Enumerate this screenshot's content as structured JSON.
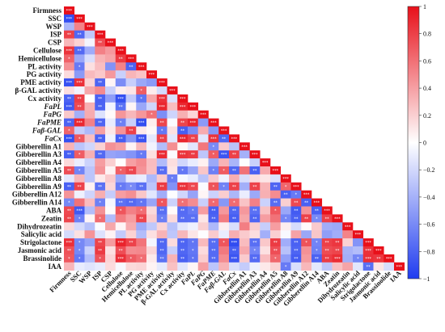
{
  "chart_data": {
    "type": "heatmap",
    "title": "",
    "layout": "lower-triangular correlation matrix",
    "variables": [
      {
        "name": "Firmness",
        "italic": false
      },
      {
        "name": "SSC",
        "italic": false
      },
      {
        "name": "WSP",
        "italic": false
      },
      {
        "name": "ISP",
        "italic": false
      },
      {
        "name": "CSP",
        "italic": false
      },
      {
        "name": "Cellulose",
        "italic": false
      },
      {
        "name": "Hemicellulose",
        "italic": false
      },
      {
        "name": "PL activity",
        "italic": false
      },
      {
        "name": "PG activity",
        "italic": false
      },
      {
        "name": "PME activity",
        "italic": false
      },
      {
        "name": "β-GAL activity",
        "italic": false
      },
      {
        "name": "Cx activity",
        "italic": false
      },
      {
        "name": "FaPL",
        "italic": true
      },
      {
        "name": "FaPG",
        "italic": true
      },
      {
        "name": "FaPME",
        "italic": true
      },
      {
        "name": "Faβ-GAL",
        "italic": true
      },
      {
        "name": "FaCx",
        "italic": true
      },
      {
        "name": "Gibberellin A1",
        "italic": false
      },
      {
        "name": "Gibberellin A3",
        "italic": false
      },
      {
        "name": "Gibberellin A4",
        "italic": false
      },
      {
        "name": "Gibberellin A5",
        "italic": false
      },
      {
        "name": "Gibberellin A8",
        "italic": false
      },
      {
        "name": "Gibberellin A9",
        "italic": false
      },
      {
        "name": "Gibberellin A12",
        "italic": false
      },
      {
        "name": "Gibberellin A14",
        "italic": false
      },
      {
        "name": "ABA",
        "italic": false
      },
      {
        "name": "Zeatin",
        "italic": false
      },
      {
        "name": "Dihydrozeatin",
        "italic": false
      },
      {
        "name": "Salicylic acid",
        "italic": false
      },
      {
        "name": "Strigolactone",
        "italic": false
      },
      {
        "name": "Jasmonic acid",
        "italic": false
      },
      {
        "name": "Brassinolide",
        "italic": false
      },
      {
        "name": "IAA",
        "italic": false
      }
    ],
    "colorbar": {
      "min": -1,
      "max": 1,
      "ticks": [
        1,
        0.8,
        0.6,
        0.4,
        0.2,
        0,
        -0.2,
        -0.4,
        -0.6,
        -0.8,
        -1
      ],
      "tick_labels": [
        "1",
        "0.8",
        "0.6",
        "0.4",
        "0.2",
        "0",
        "−0.2",
        "−0.4",
        "−0.6",
        "−0.8",
        "−1"
      ],
      "colors": {
        "negative": "#1f3cf0",
        "zero": "#ffffff",
        "positive": "#e8101a"
      }
    },
    "significance_markers": [
      "*",
      "**",
      "***"
    ],
    "matrix": [
      [
        1.0
      ],
      [
        -0.91,
        1.0
      ],
      [
        -0.38,
        0.52,
        1.0
      ],
      [
        0.8,
        -0.78,
        -0.28,
        1.0
      ],
      [
        0.3,
        0.19,
        -0.05,
        0.75,
        1.0
      ],
      [
        0.85,
        -0.77,
        -0.43,
        0.53,
        0.43,
        1.0
      ],
      [
        0.66,
        -0.45,
        -0.17,
        0.32,
        0.38,
        0.82,
        1.0
      ],
      [
        0.46,
        -0.68,
        0.13,
        0.27,
        -0.56,
        0.52,
        -0.8,
        1.0
      ],
      [
        0.15,
        -0.52,
        0.29,
        0.23,
        0.43,
        -0.24,
        0.31,
        0.25,
        1.0
      ],
      [
        -0.89,
        0.87,
        0.18,
        -0.79,
        0.04,
        -0.59,
        -0.25,
        -0.45,
        -0.52,
        1.0
      ],
      [
        0.14,
        -0.06,
        0.37,
        0.49,
        -0.24,
        0.07,
        0.11,
        0.68,
        0.08,
        -0.19,
        1.0
      ],
      [
        -0.8,
        0.81,
        0.0,
        -0.81,
        -0.5,
        -0.9,
        -0.28,
        -0.72,
        0.37,
        0.86,
        -0.16,
        1.0
      ],
      [
        -0.85,
        0.76,
        0.33,
        -0.8,
        -0.06,
        -0.73,
        0.04,
        -0.45,
        -0.21,
        0.91,
        0.28,
        0.91,
        1.0
      ],
      [
        0.23,
        -0.41,
        0.35,
        -0.15,
        0.02,
        0.44,
        0.3,
        0.44,
        0.6,
        -0.58,
        -0.22,
        0.33,
        0.17,
        1.0
      ],
      [
        -0.8,
        0.91,
        0.53,
        -0.79,
        -0.1,
        -0.65,
        -0.24,
        -0.91,
        0.07,
        0.78,
        -0.02,
        0.78,
        0.91,
        -0.52,
        1.0
      ],
      [
        0.65,
        -0.25,
        -0.36,
        0.4,
        0.1,
        0.45,
        0.8,
        0.09,
        0.03,
        -0.69,
        0.13,
        -0.82,
        -0.59,
        0.35,
        -0.53,
        1.0
      ],
      [
        -0.9,
        0.7,
        0.27,
        -0.81,
        -0.07,
        -0.83,
        -0.54,
        -0.88,
        -0.12,
        0.8,
        -0.13,
        0.91,
        0.79,
        -0.13,
        0.85,
        -0.78,
        1.0
      ],
      [
        0.32,
        -0.3,
        -0.21,
        0.19,
        0.46,
        0.4,
        0.05,
        0.3,
        -0.06,
        -0.34,
        0.47,
        0.03,
        -0.13,
        0.57,
        -0.6,
        0.22,
        -0.31,
        1.0
      ],
      [
        -0.82,
        0.68,
        0.33,
        -0.77,
        -0.47,
        -0.5,
        -0.55,
        -0.68,
        0.13,
        0.89,
        -0.02,
        0.85,
        0.82,
        -0.29,
        0.68,
        -0.87,
        0.8,
        -0.4,
        1.0
      ],
      [
        0.16,
        -0.09,
        -0.23,
        0.41,
        0.2,
        0.01,
        0.4,
        0.48,
        0.28,
        -0.35,
        0.14,
        -0.21,
        -0.1,
        0.06,
        -0.44,
        0.32,
        -0.38,
        -0.01,
        -0.24,
        1.0
      ],
      [
        0.74,
        -0.63,
        -0.3,
        0.45,
        0.05,
        0.67,
        0.77,
        0.45,
        0.27,
        -0.75,
        0.11,
        -0.69,
        -0.46,
        0.24,
        -0.65,
        0.69,
        -0.78,
        0.59,
        -0.81,
        0.36,
        1.0
      ],
      [
        -0.12,
        0.3,
        -0.3,
        0.09,
        0.22,
        -0.45,
        -0.12,
        -0.1,
        -0.36,
        0.22,
        -0.67,
        -0.03,
        -0.1,
        -0.31,
        0.22,
        -0.07,
        0.34,
        -0.17,
        0.15,
        0.11,
        -0.16,
        1.0
      ],
      [
        -0.81,
        0.79,
        0.06,
        -0.73,
        0.17,
        -0.68,
        -0.6,
        -0.73,
        -0.3,
        0.82,
        -0.56,
        0.85,
        0.76,
        -0.02,
        0.72,
        -0.64,
        0.8,
        -0.41,
        0.79,
        0.32,
        -0.79,
        0.64,
        1.0
      ],
      [
        0.45,
        -0.07,
        -0.22,
        0.34,
        -0.26,
        0.41,
        0.47,
        0.24,
        -0.13,
        -0.42,
        -0.01,
        -0.21,
        -0.47,
        0.04,
        -0.23,
        0.21,
        -0.37,
        -0.09,
        -0.44,
        0.33,
        0.48,
        -0.81,
        -0.68,
        1.0
      ],
      [
        -0.61,
        0.59,
        0.28,
        -0.65,
        -0.04,
        -0.73,
        -0.77,
        -0.71,
        -0.46,
        0.71,
        -0.23,
        0.6,
        0.48,
        -0.24,
        0.63,
        -0.53,
        0.62,
        0.25,
        0.53,
        -0.23,
        -0.75,
        0.2,
        0.76,
        -0.81,
        1.0
      ],
      [
        0.76,
        -0.85,
        -0.34,
        0.46,
        0.02,
        0.71,
        0.53,
        0.61,
        0.16,
        -0.74,
        0.02,
        -0.76,
        -0.68,
        0.41,
        -0.82,
        0.43,
        -0.78,
        0.43,
        -0.73,
        0.26,
        0.7,
        -0.45,
        -0.84,
        0.45,
        -0.81,
        1.0
      ],
      [
        0.78,
        -0.65,
        0.04,
        0.62,
        -0.35,
        0.54,
        0.41,
        0.78,
        0.22,
        -0.66,
        0.16,
        -0.75,
        -0.74,
        0.11,
        -0.8,
        0.55,
        -0.82,
        0.37,
        -0.79,
        0.41,
        0.59,
        -0.62,
        -0.81,
        0.79,
        -0.6,
        0.8,
        1.0
      ],
      [
        0.16,
        -0.19,
        -0.32,
        -0.02,
        0.37,
        0.04,
        0.35,
        -0.43,
        -0.28,
        0.18,
        -0.32,
        -0.13,
        -0.07,
        0.2,
        -0.36,
        0.07,
        -0.17,
        0.54,
        0.21,
        -0.25,
        0.41,
        0.07,
        -0.18,
        0.02,
        0.22,
        -0.42,
        -0.44,
        1.0
      ],
      [
        -0.19,
        0.13,
        0.45,
        -0.15,
        0.05,
        -0.27,
        0.19,
        -0.34,
        0.13,
        0.32,
        -0.29,
        0.3,
        0.11,
        -0.01,
        0.22,
        -0.1,
        0.34,
        0.22,
        0.14,
        -0.41,
        0.2,
        -0.03,
        0.39,
        -0.45,
        0.24,
        -0.5,
        -0.42,
        0.52,
        1.0
      ],
      [
        0.87,
        -0.61,
        -0.48,
        0.78,
        0.42,
        0.92,
        0.79,
        0.58,
        -0.05,
        -0.78,
        0.15,
        -0.79,
        -0.71,
        0.29,
        -0.75,
        0.71,
        -0.92,
        0.28,
        -0.74,
        0.23,
        0.82,
        -0.42,
        -0.81,
        0.72,
        -0.63,
        0.8,
        0.84,
        0.19,
        -0.55,
        1.0
      ],
      [
        0.73,
        -0.61,
        -0.23,
        0.82,
        0.13,
        0.74,
        0.48,
        0.5,
        0.17,
        -0.78,
        -0.25,
        -0.78,
        -0.7,
        0.15,
        -0.76,
        0.56,
        -0.82,
        0.36,
        -0.63,
        0.13,
        0.74,
        -0.32,
        -0.79,
        0.46,
        -0.65,
        0.75,
        0.78,
        -0.39,
        -0.34,
        0.86,
        1.0
      ],
      [
        0.7,
        -0.69,
        -0.34,
        0.72,
        0.18,
        0.87,
        0.69,
        0.61,
        0.09,
        -0.73,
        0.32,
        -0.81,
        -0.72,
        0.21,
        -0.76,
        0.48,
        -0.87,
        0.22,
        -0.76,
        0.28,
        0.64,
        -0.49,
        -0.83,
        0.42,
        -0.8,
        0.81,
        0.88,
        -0.41,
        -0.62,
        0.87,
        0.84,
        1.0
      ],
      [
        0.31,
        -0.1,
        -0.14,
        -0.1,
        0.15,
        -0.03,
        0.16,
        0.18,
        0.05,
        -0.11,
        0.26,
        -0.13,
        0.04,
        0.4,
        -0.3,
        0.32,
        -0.17,
        -0.26,
        -0.07,
        0.09,
        0.19,
        -0.68,
        -0.17,
        0.3,
        -0.12,
        -0.3,
        0.26,
        0.38,
        -0.13,
        -0.74,
        0.11,
        -0.18,
        1.0
      ]
    ]
  }
}
